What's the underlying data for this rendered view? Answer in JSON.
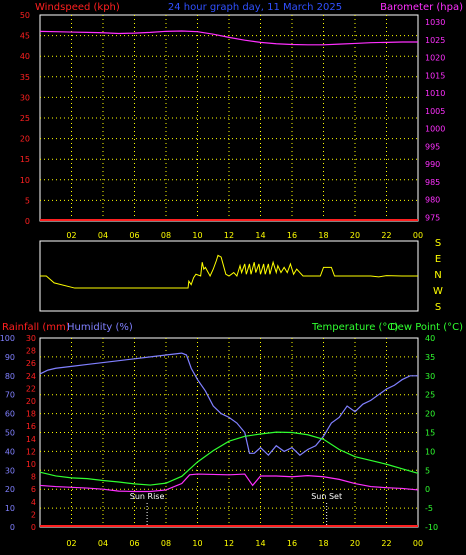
{
  "header": {
    "left_label": "Windspeed (kph)",
    "center_label": "24 hour graph day, 11 March 2025",
    "right_label": "Barometer (hpa)"
  },
  "footer_labels": {
    "left1": "Rainfall (mm)",
    "left2": "Humidity (%)",
    "right1": "Temperature (°C)",
    "right2": "Dew Point (°C)"
  },
  "colors": {
    "wind": "#ff2020",
    "baro": "#ff30ff",
    "grid": "#ffff00",
    "axis_time": "#ffff00",
    "direction": "#ffff00",
    "rain": "#ff2020",
    "humidity": "#8080ff",
    "temperature": "#30ff30",
    "dewpoint": "#ff30ff",
    "white": "#ffffff"
  },
  "chart_data": [
    {
      "type": "line",
      "name": "wind-barometer",
      "x_ticks": [
        "02",
        "04",
        "06",
        "08",
        "10",
        "12",
        "14",
        "16",
        "18",
        "20",
        "22",
        "00"
      ],
      "y_left_ticks": [
        0,
        5,
        10,
        15,
        20,
        25,
        30,
        35,
        40,
        45,
        50
      ],
      "y_left_range": [
        0,
        50
      ],
      "y_right_ticks": [
        975,
        980,
        985,
        990,
        995,
        1000,
        1005,
        1010,
        1015,
        1020,
        1025,
        1030
      ],
      "y_right_range": [
        974,
        1032
      ],
      "series": [
        {
          "name": "Windspeed (kph)",
          "axis": "left",
          "x": [
            0,
            24
          ],
          "y": [
            0,
            0
          ]
        },
        {
          "name": "Barometer (hpa)",
          "axis": "right",
          "x": [
            0,
            1,
            2,
            3,
            4,
            5,
            6,
            7,
            8,
            9,
            10,
            11,
            12,
            13,
            14,
            15,
            16,
            17,
            18,
            19,
            20,
            21,
            22,
            23,
            24
          ],
          "y": [
            1027.4,
            1027.3,
            1027.2,
            1027.1,
            1027.0,
            1026.8,
            1026.9,
            1027.1,
            1027.4,
            1027.5,
            1027.3,
            1026.6,
            1025.7,
            1024.9,
            1024.3,
            1023.9,
            1023.7,
            1023.6,
            1023.6,
            1023.8,
            1024.0,
            1024.2,
            1024.3,
            1024.4,
            1024.4
          ]
        }
      ]
    },
    {
      "type": "line",
      "name": "wind-direction",
      "y_ticks": [
        "S",
        "E",
        "N",
        "W",
        "S"
      ],
      "y_range": [
        0,
        360
      ],
      "series": [
        {
          "name": "Direction",
          "x": [
            0,
            0.4,
            0.9,
            2.2,
            3.6,
            5.0,
            6.4,
            7.8,
            9.4,
            9.45,
            9.6,
            9.75,
            9.9,
            10.2,
            10.3,
            10.4,
            10.5,
            10.8,
            11.0,
            11.2,
            11.3,
            11.5,
            11.8,
            12.0,
            12.3,
            12.5,
            12.7,
            12.8,
            13.0,
            13.1,
            13.3,
            13.4,
            13.6,
            13.7,
            13.9,
            14.0,
            14.2,
            14.3,
            14.5,
            14.6,
            14.8,
            15.0,
            15.1,
            15.3,
            15.5,
            15.7,
            15.9,
            16.1,
            16.3,
            16.5,
            16.7,
            16.9,
            17.1,
            17.3,
            17.6,
            17.8,
            18.0,
            18.2,
            18.5,
            18.7,
            19.0,
            20.0,
            21.0,
            21.5,
            22.0,
            23.0,
            24.0
          ],
          "y": [
            180,
            180,
            140,
            110,
            110,
            110,
            110,
            110,
            110,
            150,
            130,
            170,
            190,
            180,
            260,
            220,
            230,
            180,
            220,
            270,
            300,
            290,
            190,
            180,
            200,
            180,
            240,
            200,
            250,
            190,
            250,
            190,
            260,
            200,
            250,
            190,
            250,
            190,
            250,
            190,
            260,
            200,
            240,
            200,
            230,
            200,
            250,
            190,
            220,
            200,
            180,
            180,
            180,
            180,
            180,
            180,
            230,
            230,
            230,
            180,
            180,
            180,
            180,
            175,
            182,
            180,
            180
          ]
        }
      ]
    },
    {
      "type": "line",
      "name": "temp-humidity-rain",
      "x_ticks": [
        "02",
        "04",
        "06",
        "08",
        "10",
        "12",
        "14",
        "16",
        "18",
        "20",
        "22",
        "00"
      ],
      "y_rain_ticks": [
        0,
        2,
        4,
        6,
        8,
        10,
        12,
        14,
        16,
        18,
        20,
        22,
        24,
        26,
        28,
        30
      ],
      "y_humidity_ticks": [
        0,
        10,
        20,
        30,
        40,
        50,
        60,
        70,
        80,
        90,
        100
      ],
      "y_temp_ticks": [
        -10,
        -5,
        0,
        5,
        10,
        15,
        20,
        25,
        30,
        35,
        40
      ],
      "y_temp_range": [
        -10,
        40
      ],
      "annotations": [
        {
          "label": "Sun Rise",
          "x": 6.8
        },
        {
          "label": "Sun Set",
          "x": 18.2
        }
      ],
      "series": [
        {
          "name": "Rainfall (mm)",
          "axis": "rain",
          "x": [
            0,
            24
          ],
          "y": [
            0,
            0
          ]
        },
        {
          "name": "Humidity (%)",
          "axis": "humidity",
          "x": [
            0,
            0.5,
            1.0,
            2.0,
            3.0,
            4.0,
            5.0,
            6.0,
            7.0,
            8.0,
            9.0,
            9.3,
            9.6,
            10.0,
            10.5,
            11.0,
            11.5,
            12.0,
            12.5,
            13.0,
            13.3,
            13.6,
            14.0,
            14.5,
            15.0,
            15.5,
            16.0,
            16.5,
            17.0,
            17.5,
            18.0,
            18.5,
            19.0,
            19.5,
            20.0,
            20.5,
            21.0,
            21.5,
            22.0,
            22.5,
            23.0,
            23.5,
            24.0
          ],
          "y": [
            81,
            83,
            84,
            85,
            86,
            87,
            88,
            89,
            90,
            91,
            92,
            91,
            84,
            78,
            72,
            64,
            60,
            58,
            55,
            50,
            39,
            39,
            42,
            38,
            43,
            40,
            42,
            38,
            41,
            43,
            48,
            55,
            58,
            64,
            61,
            65,
            67,
            70,
            73,
            75,
            78,
            80,
            80
          ]
        },
        {
          "name": "Temperature (°C)",
          "axis": "temp",
          "x": [
            0,
            1,
            2,
            3,
            4,
            5,
            6,
            7,
            8,
            9,
            10,
            11,
            12,
            13,
            14,
            15,
            16,
            17,
            18,
            19,
            20,
            21,
            22,
            23,
            24
          ],
          "y": [
            4.5,
            3.5,
            3.0,
            2.8,
            2.3,
            1.9,
            1.4,
            1.1,
            1.6,
            3.4,
            7.2,
            10.2,
            12.7,
            14.0,
            14.6,
            15.1,
            15.0,
            14.4,
            13.2,
            10.5,
            8.6,
            7.6,
            6.6,
            5.4,
            4.2
          ]
        },
        {
          "name": "Dew Point (°C)",
          "axis": "temp",
          "x": [
            0,
            1,
            2,
            3,
            4,
            5,
            6,
            7,
            8,
            9,
            9.5,
            10,
            11,
            12,
            13,
            13.5,
            14,
            15,
            16,
            17,
            18,
            19,
            20,
            21,
            22,
            23,
            24
          ],
          "y": [
            1.0,
            0.7,
            0.5,
            0.3,
            0.0,
            -0.5,
            -0.6,
            -0.6,
            -0.2,
            1.5,
            3.8,
            4.0,
            3.9,
            3.8,
            4.0,
            1.0,
            3.5,
            3.5,
            3.3,
            3.6,
            3.3,
            2.6,
            1.5,
            0.7,
            0.4,
            0.2,
            -0.2
          ]
        }
      ]
    }
  ]
}
